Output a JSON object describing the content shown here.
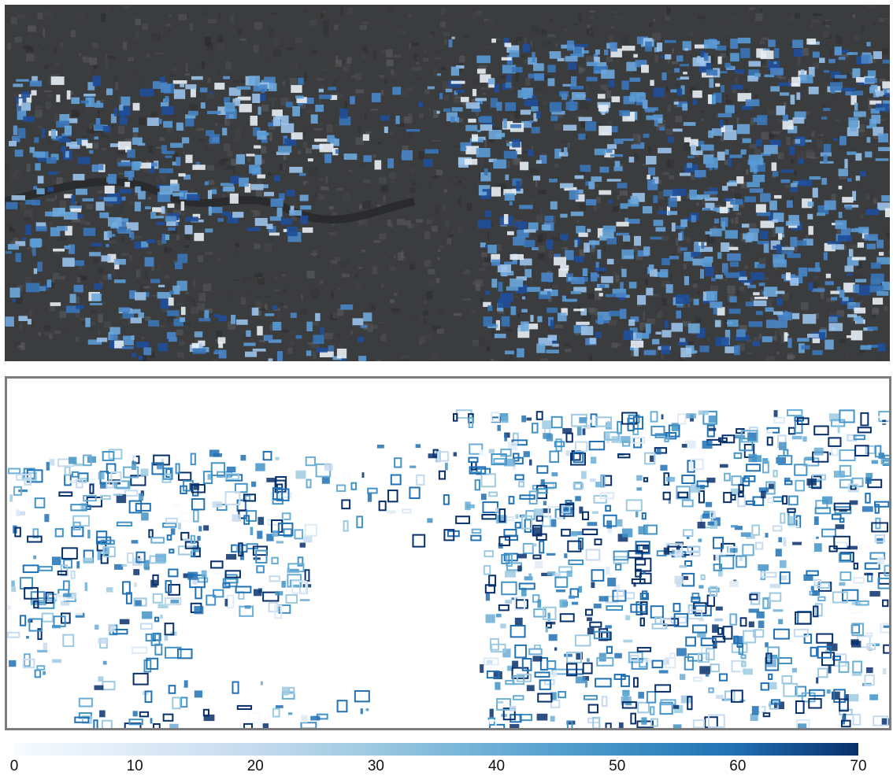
{
  "colorbar": {
    "min": 0,
    "max": 70,
    "ticks": [
      "0",
      "10",
      "20",
      "30",
      "40",
      "50",
      "60",
      "70"
    ],
    "colors": [
      "#f7fbff",
      "#deebf7",
      "#c6dbef",
      "#9ecae1",
      "#6baed6",
      "#4292c6",
      "#2171b5",
      "#08306b"
    ]
  },
  "panels": {
    "top": {
      "content": "3D building rendering over grayscale SAR image",
      "background": "#3a3b3d",
      "building_color": "#5b9bd5"
    },
    "bottom": {
      "content": "building footprints colored by value",
      "border_color": "#7d7d7d"
    }
  }
}
